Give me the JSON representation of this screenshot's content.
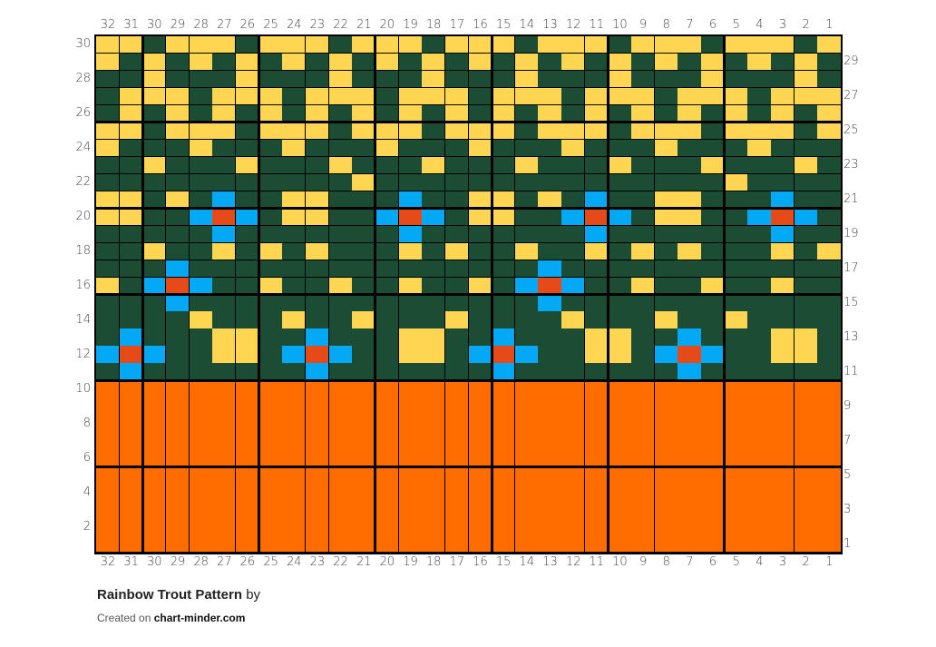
{
  "chart_data": {
    "type": "heatmap",
    "title": "Rainbow Trout Pattern",
    "subtitle": "by",
    "credit_prefix": "Created on",
    "credit_site": "chart-minder.com",
    "columns": 32,
    "rows": 30,
    "column_labels_left_to_right": [
      32,
      31,
      30,
      29,
      28,
      27,
      26,
      25,
      24,
      23,
      22,
      21,
      20,
      19,
      18,
      17,
      16,
      15,
      14,
      13,
      12,
      11,
      10,
      9,
      8,
      7,
      6,
      5,
      4,
      3,
      2,
      1
    ],
    "row_labels_left_even": [
      30,
      28,
      26,
      24,
      22,
      20,
      18,
      16,
      14,
      12,
      10,
      8,
      6,
      4,
      2
    ],
    "row_labels_right_odd": [
      29,
      27,
      25,
      23,
      21,
      19,
      17,
      15,
      13,
      11,
      9,
      7,
      5,
      3,
      1
    ],
    "legend": {
      "Y": {
        "name": "yellow",
        "color": "#FFD652"
      },
      "G": {
        "name": "dark-green",
        "color": "#1B4D35"
      },
      "B": {
        "name": "blue",
        "color": "#03A9F4"
      },
      "R": {
        "name": "red-orange",
        "color": "#E64A19"
      },
      "O": {
        "name": "orange",
        "color": "#FF6D00"
      }
    },
    "bold_line_every": 5,
    "grid_rows_top_to_bottom": [
      "YYGYYYGYYYGYYYGYYYGYYYGYYYGYYYGY",
      "YGYGYGYGYGYGYGYGYGYGYGYGYGYGYGYG",
      "GGYGGGYGGGYGGGYGGGYGGGYGGGYGGGYG",
      "GYYYGYYYGYYYGYYYGYYYGYYYGYYYGYYY",
      "GYGYGYGYGYGYGYGYGYGYGYGYGYGYGYGY",
      "YYGYYYGYYYGYYYGYYYGYYYGYYYGYYYGY",
      "YGGGYGGGYGGGYGGGYGGGYGGGYGGGYGGG",
      "GGYGGGYGGGYGGGYGGGYGGGYGGGYGGGYG",
      "GGGGGGGGGGGYGGGGGGGGGGGGGGGYGGGG",
      "YYGYGBGGYYGGGBGGYYGYGBGGYYGGGBGG",
      "YYGGBRBGYYGGBRBGYYGGBRBGYYGGBRBG",
      "GGGGGBGGGGGGGBGGGGGGGBGGGGGGGBGG",
      "GGYGGYGYGYGGGYGYGGYGGYGYGYGGGYGY",
      "GGGBGGGGGGGGGGGGGGGBGGGGGGGGGGGG",
      "YGBRBGGYGGYGGYGGYGBRBGGYGGYGGYGG",
      "GGGBGGGGGGGGGGGGGGGBGGGGGGGGGGGG",
      "GGGGYGGGYGGYGGGYGGGGYGGGYGGYGGGG",
      "GBGGGYYGGBGGGYYGGBGGGYYGGBGGGYYG",
      "BRBGGYYGBRBGGYYGBRBGGYYGBRBGGYYG",
      "GBGGGGGGGBGGGGGGGBGGGGGGGBGGGGGG",
      "OOOOOOOOOOOOOOOOOOOOOOOOOOOOOOOO",
      "OOOOOOOOOOOOOOOOOOOOOOOOOOOOOOOO",
      "OOOOOOOOOOOOOOOOOOOOOOOOOOOOOOOO",
      "OOOOOOOOOOOOOOOOOOOOOOOOOOOOOOOO",
      "OOOOOOOOOOOOOOOOOOOOOOOOOOOOOOOO",
      "OOOOOOOOOOOOOOOOOOOOOOOOOOOOOOOO",
      "OOOOOOOOOOOOOOOOOOOOOOOOOOOOOOOO",
      "OOOOOOOOOOOOOOOOOOOOOOOOOOOOOOOO",
      "OOOOOOOOOOOOOOOOOOOOOOOOOOOOOOOO",
      "OOOOOOOOOOOOOOOOOOOOOOOOOOOOOOOO"
    ]
  },
  "footer": {
    "title": "Rainbow Trout Pattern",
    "by": "by",
    "created_on": "Created on",
    "site": "chart-minder.com"
  }
}
